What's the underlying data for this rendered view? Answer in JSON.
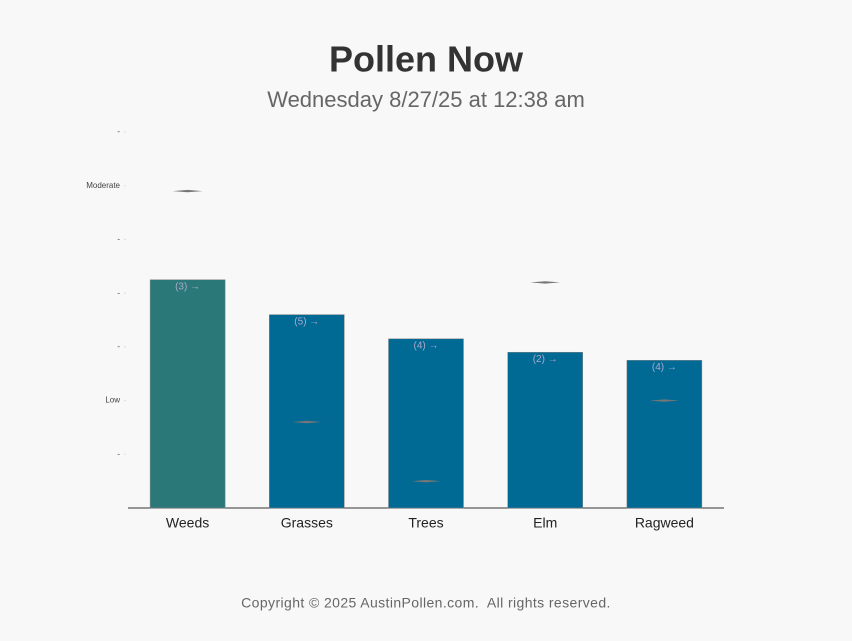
{
  "chart_data": {
    "type": "bar",
    "title": "Pollen Now",
    "subtitle": "Wednesday 8/27/25 at 12:38 am",
    "categories": [
      "Weeds",
      "Grasses",
      "Trees",
      "Elm",
      "Ragweed"
    ],
    "series": [
      {
        "values": [
          4.25,
          3.6,
          3.15,
          2.9,
          2.75
        ],
        "colors": [
          "#2a7878",
          "#006994",
          "#006994",
          "#006994",
          "#006994"
        ]
      },
      {
        "values": [
          5.9,
          1.6,
          0.5,
          4.2,
          2.0
        ],
        "color": "#777777"
      }
    ],
    "bar_labels": [
      "(3) →",
      "(5) →",
      "(4) →",
      "(2) →",
      "(4) →"
    ],
    "ylim": [
      0,
      7
    ],
    "yticks": [
      {
        "value": 1,
        "label": "-"
      },
      {
        "value": 2,
        "label": "Low"
      },
      {
        "value": 3,
        "label": "-"
      },
      {
        "value": 4,
        "label": "-"
      },
      {
        "value": 5,
        "label": "-"
      },
      {
        "value": 6,
        "label": "Moderate"
      },
      {
        "value": 7,
        "label": "-"
      }
    ],
    "footer": "Copyright © 2025 AustinPollen.com.  All rights reserved."
  }
}
